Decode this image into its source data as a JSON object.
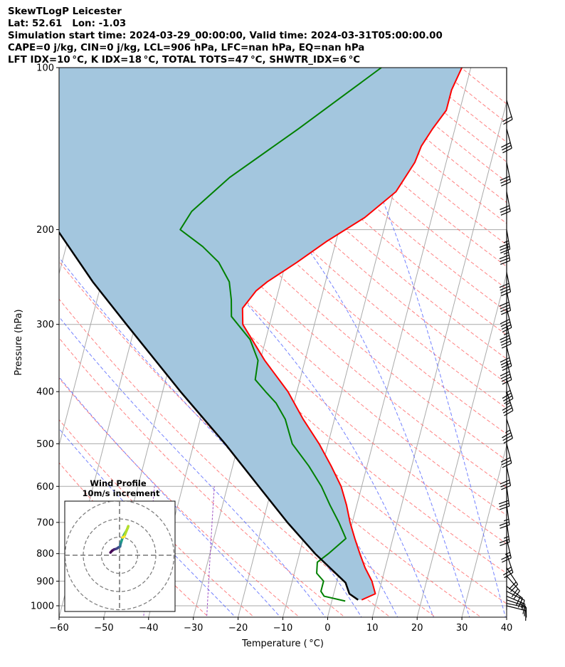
{
  "header": {
    "line1": "SkewTLogP Leicester",
    "line2": "Lat: 52.61   Lon: -1.03",
    "line3": "Simulation start time: 2024-03-29_00:00:00, Valid time: 2024-03-31T05:00:00.00",
    "line4": "CAPE=0 j/kg, CIN=0 j/kg, LCL=906 hPa, LFC=nan hPa, EQ=nan hPa",
    "line5": "LFT IDX=10 °C, K IDX=18 °C, TOTAL TOTS=47 °C, SHWTR_IDX=6 °C"
  },
  "colors": {
    "temperature": "#ff0000",
    "dewpoint": "#008000",
    "parcel": "#000000",
    "fill": "#a3c6de",
    "dry_adiabat": "#ff6b6b",
    "moist_adiabat": "#5a6bff",
    "mixing_ratio": "#9e50c4",
    "isotherm": "#aaaaaa"
  },
  "chart_data": {
    "type": "line",
    "subtype": "skew-T log-P",
    "xlabel": "Temperature ( °C)",
    "ylabel": "Pressure (hPa)",
    "xlim": [
      -60,
      40
    ],
    "ylim": [
      1050,
      100
    ],
    "y_scale": "log",
    "x_ticks": [
      "−60",
      "−50",
      "−40",
      "−30",
      "−20",
      "−10",
      "0",
      "10",
      "20",
      "30",
      "40"
    ],
    "y_ticks": [
      "1000",
      "900",
      "800",
      "700",
      "600",
      "500",
      "400",
      "300",
      "200",
      "100"
    ],
    "grid": true,
    "series": [
      {
        "key": "temperature",
        "values": [
          [
            975,
            6.6
          ],
          [
            950,
            9.3
          ],
          [
            900,
            7.8
          ],
          [
            850,
            5.5
          ],
          [
            800,
            3.5
          ],
          [
            750,
            1.5
          ],
          [
            700,
            -0.5
          ],
          [
            650,
            -2.3
          ],
          [
            600,
            -4.6
          ],
          [
            550,
            -8.0
          ],
          [
            500,
            -12.0
          ],
          [
            450,
            -17.0
          ],
          [
            400,
            -22.0
          ],
          [
            350,
            -29.0
          ],
          [
            300,
            -36.0
          ],
          [
            280,
            -37.0
          ],
          [
            260,
            -35.0
          ],
          [
            250,
            -33.0
          ],
          [
            230,
            -27.5
          ],
          [
            210,
            -22.0
          ],
          [
            190,
            -15.0
          ],
          [
            170,
            -9.5
          ],
          [
            150,
            -7.0
          ],
          [
            140,
            -6.5
          ],
          [
            130,
            -5.0
          ],
          [
            120,
            -3.0
          ],
          [
            110,
            -3.0
          ],
          [
            100,
            -2.0
          ]
        ]
      },
      {
        "key": "dewpoint",
        "values": [
          [
            980,
            3.0
          ],
          [
            960,
            -2.0
          ],
          [
            940,
            -3.0
          ],
          [
            900,
            -3.0
          ],
          [
            870,
            -5.0
          ],
          [
            830,
            -5.5
          ],
          [
            800,
            -3.5
          ],
          [
            750,
            -0.5
          ],
          [
            700,
            -3.0
          ],
          [
            650,
            -6.0
          ],
          [
            600,
            -9.0
          ],
          [
            550,
            -13.0
          ],
          [
            500,
            -18.0
          ],
          [
            450,
            -21.0
          ],
          [
            420,
            -24.0
          ],
          [
            400,
            -27.0
          ],
          [
            380,
            -30.0
          ],
          [
            350,
            -30.5
          ],
          [
            320,
            -33.5
          ],
          [
            290,
            -39.0
          ],
          [
            270,
            -40.0
          ],
          [
            250,
            -41.5
          ],
          [
            230,
            -45.0
          ],
          [
            215,
            -49.5
          ],
          [
            200,
            -55.5
          ],
          [
            185,
            -54.0
          ],
          [
            160,
            -47.5
          ],
          [
            130,
            -35.0
          ],
          [
            100,
            -20.0
          ]
        ]
      },
      {
        "key": "parcel",
        "values": [
          [
            975,
            5.8
          ],
          [
            950,
            3.5
          ],
          [
            906,
            2.0
          ],
          [
            800,
            -6.5
          ],
          [
            700,
            -14.5
          ],
          [
            600,
            -23.0
          ],
          [
            500,
            -33.0
          ],
          [
            400,
            -46.0
          ],
          [
            300,
            -62.0
          ],
          [
            250,
            -72.0
          ],
          [
            200,
            -83.0
          ],
          [
            150,
            -97.0
          ],
          [
            100,
            -118.0
          ]
        ]
      }
    ],
    "hodograph": {
      "title": "Wind Profile",
      "subtitle": "10m/s increment",
      "rings_ms": [
        10,
        20,
        30
      ],
      "points": [
        [
          -5.0,
          1.5
        ],
        [
          -4.2,
          2.4
        ],
        [
          -3.0,
          3.2
        ],
        [
          -1.6,
          3.6
        ],
        [
          -0.8,
          4.2
        ],
        [
          0.3,
          4.8
        ],
        [
          0.5,
          6.0
        ],
        [
          1.0,
          7.6
        ],
        [
          1.6,
          9.4
        ],
        [
          2.6,
          11.5
        ],
        [
          3.8,
          13.5
        ],
        [
          4.5,
          15.0
        ],
        [
          4.8,
          16.0
        ],
        [
          2.6,
          10.3
        ],
        [
          1.6,
          9.8
        ]
      ]
    },
    "wind_barbs": [
      {
        "p": 1000,
        "u": -4,
        "v": 1
      },
      {
        "p": 990,
        "u": -5,
        "v": 1
      },
      {
        "p": 975,
        "u": -6,
        "v": 2
      },
      {
        "p": 960,
        "u": -7,
        "v": 3
      },
      {
        "p": 940,
        "u": -8,
        "v": 4
      },
      {
        "p": 920,
        "u": -8,
        "v": 6
      },
      {
        "p": 880,
        "u": -7,
        "v": 8
      },
      {
        "p": 850,
        "u": -6,
        "v": 9
      },
      {
        "p": 800,
        "u": -4,
        "v": 12
      },
      {
        "p": 750,
        "u": -3,
        "v": 13
      },
      {
        "p": 700,
        "u": -2,
        "v": 14
      },
      {
        "p": 650,
        "u": -2,
        "v": 14
      },
      {
        "p": 600,
        "u": -2,
        "v": 15
      },
      {
        "p": 550,
        "u": -3,
        "v": 15
      },
      {
        "p": 500,
        "u": -4,
        "v": 16
      },
      {
        "p": 450,
        "u": -5,
        "v": 16
      },
      {
        "p": 400,
        "u": -6,
        "v": 18
      },
      {
        "p": 380,
        "u": -6,
        "v": 18
      },
      {
        "p": 350,
        "u": -5,
        "v": 20
      },
      {
        "p": 330,
        "u": -5,
        "v": 20
      },
      {
        "p": 300,
        "u": -5,
        "v": 22
      },
      {
        "p": 280,
        "u": -5,
        "v": 20
      },
      {
        "p": 260,
        "u": -4,
        "v": 20
      },
      {
        "p": 240,
        "u": -4,
        "v": 20
      },
      {
        "p": 210,
        "u": -3,
        "v": 18
      },
      {
        "p": 200,
        "u": -3,
        "v": 18
      },
      {
        "p": 170,
        "u": -3,
        "v": 16
      },
      {
        "p": 150,
        "u": -3,
        "v": 15
      },
      {
        "p": 130,
        "u": -4,
        "v": 15
      },
      {
        "p": 115,
        "u": -3,
        "v": 10
      }
    ]
  }
}
